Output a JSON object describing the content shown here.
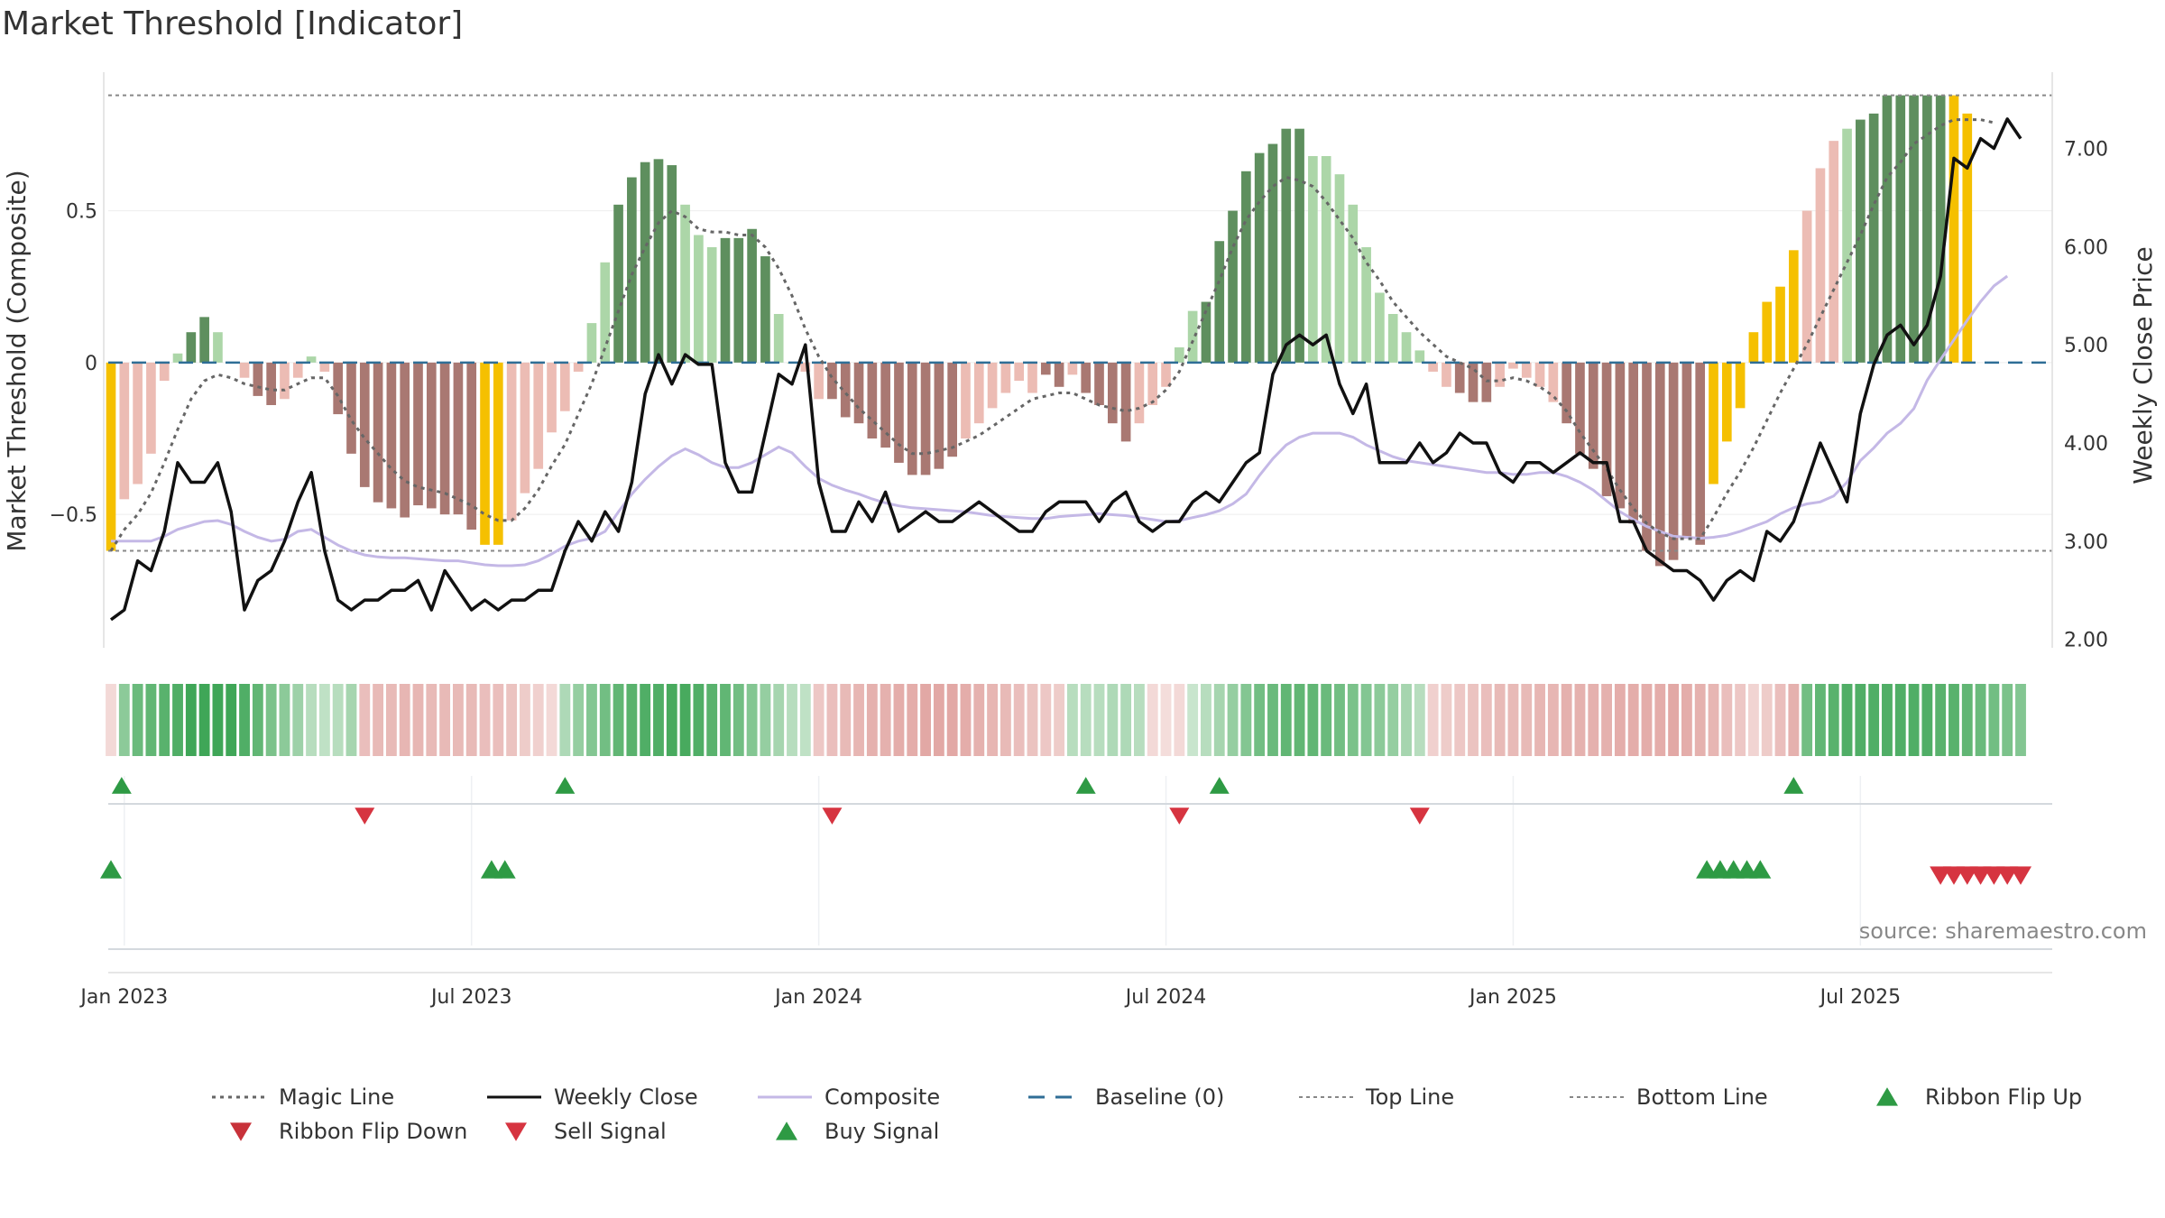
{
  "title": "Market Threshold [Indicator]",
  "source": "source: sharemaestro.com",
  "colors": {
    "strong_up": "#5e8f5e",
    "weak_up": "#acd6a8",
    "strong_down": "#a97872",
    "weak_down": "#ecbcb4",
    "extreme": "#f5c000",
    "weekly_close": "#111111",
    "composite": "#c4b8e6",
    "magic_line": "#666666",
    "baseline": "#2f6e96",
    "threshold": "#888888",
    "buy": "#2e9a44",
    "sell": "#d63440",
    "ribbon_up": "#3fa657",
    "ribbon_down": "#d98e8a"
  },
  "chart_data": {
    "type": "bar",
    "title": "Market Threshold [Indicator]",
    "ylabel_left": "Market Threshold (Composite)",
    "ylabel_right": "Weekly Close Price",
    "left_axis": {
      "ylim": [
        -0.96,
        0.98
      ],
      "ticks": [
        0.5,
        0,
        -0.5
      ],
      "tick_labels": [
        "0.5",
        "0",
        "−0.5"
      ]
    },
    "right_axis": {
      "ylim": [
        1.85,
        7.85
      ],
      "ticks": [
        7,
        6,
        5,
        4,
        3,
        2
      ],
      "tick_labels": [
        "7.00",
        "6.00",
        "5.00",
        "4.00",
        "3.00",
        "2.00"
      ]
    },
    "x_ticks": [
      {
        "label": "Jan 2023",
        "week": 1
      },
      {
        "label": "Jul 2023",
        "week": 27
      },
      {
        "label": "Jan 2024",
        "week": 53
      },
      {
        "label": "Jul 2024",
        "week": 79
      },
      {
        "label": "Jan 2025",
        "week": 105
      },
      {
        "label": "Jul 2025",
        "week": 131
      }
    ],
    "weeks_total": 144,
    "top_line": 0.88,
    "bottom_line": -0.62,
    "bars_composite": [
      -0.62,
      -0.45,
      -0.4,
      -0.3,
      -0.06,
      0.03,
      0.1,
      0.15,
      0.1,
      0,
      -0.05,
      -0.11,
      -0.14,
      -0.12,
      -0.05,
      0.02,
      -0.03,
      -0.17,
      -0.3,
      -0.41,
      -0.46,
      -0.48,
      -0.51,
      -0.47,
      -0.48,
      -0.5,
      -0.5,
      -0.55,
      -0.6,
      -0.6,
      -0.52,
      -0.43,
      -0.35,
      -0.23,
      -0.16,
      -0.03,
      0.13,
      0.33,
      0.52,
      0.61,
      0.66,
      0.67,
      0.65,
      0.52,
      0.42,
      0.38,
      0.41,
      0.41,
      0.44,
      0.35,
      0.16,
      0,
      -0.03,
      -0.12,
      -0.12,
      -0.18,
      -0.2,
      -0.25,
      -0.28,
      -0.33,
      -0.37,
      -0.37,
      -0.35,
      -0.31,
      -0.25,
      -0.2,
      -0.15,
      -0.1,
      -0.06,
      -0.1,
      -0.04,
      -0.08,
      -0.04,
      -0.1,
      -0.14,
      -0.2,
      -0.26,
      -0.2,
      -0.14,
      -0.08,
      0.05,
      0.17,
      0.2,
      0.4,
      0.5,
      0.63,
      0.69,
      0.72,
      0.77,
      0.77,
      0.68,
      0.68,
      0.62,
      0.52,
      0.38,
      0.23,
      0.16,
      0.1,
      0.04,
      -0.03,
      -0.08,
      -0.1,
      -0.13,
      -0.13,
      -0.08,
      -0.02,
      -0.05,
      -0.08,
      -0.13,
      -0.2,
      -0.3,
      -0.35,
      -0.44,
      -0.48,
      -0.53,
      -0.62,
      -0.67,
      -0.65,
      -0.58,
      -0.6,
      -0.4,
      -0.26,
      -0.15,
      0.1,
      0.2,
      0.25,
      0.37,
      0.5,
      0.64,
      0.73,
      0.77,
      0.8,
      0.82,
      0.88,
      0.88,
      0.88,
      0.88,
      0.88,
      0.88,
      0.82
    ],
    "bars_category": [
      "E",
      "WD",
      "WD",
      "WD",
      "WD",
      "WU",
      "SU",
      "SU",
      "WU",
      "WD",
      "WD",
      "SD",
      "SD",
      "WD",
      "WD",
      "WU",
      "WD",
      "SD",
      "SD",
      "SD",
      "SD",
      "SD",
      "SD",
      "SD",
      "SD",
      "SD",
      "SD",
      "SD",
      "E",
      "E",
      "WD",
      "WD",
      "WD",
      "WD",
      "WD",
      "WD",
      "WU",
      "WU",
      "SU",
      "SU",
      "SU",
      "SU",
      "SU",
      "WU",
      "WU",
      "WU",
      "SU",
      "SU",
      "SU",
      "SU",
      "WU",
      "WU",
      "WD",
      "WD",
      "SD",
      "SD",
      "SD",
      "SD",
      "SD",
      "SD",
      "SD",
      "SD",
      "SD",
      "SD",
      "WD",
      "WD",
      "WD",
      "WD",
      "WD",
      "WD",
      "SD",
      "SD",
      "WD",
      "SD",
      "SD",
      "SD",
      "SD",
      "WD",
      "WD",
      "WD",
      "WU",
      "WU",
      "SU",
      "SU",
      "SU",
      "SU",
      "SU",
      "SU",
      "SU",
      "SU",
      "WU",
      "WU",
      "WU",
      "WU",
      "WU",
      "WU",
      "WU",
      "WU",
      "WU",
      "WD",
      "WD",
      "SD",
      "SD",
      "SD",
      "WD",
      "WD",
      "WD",
      "WD",
      "WD",
      "SD",
      "SD",
      "SD",
      "SD",
      "SD",
      "SD",
      "SD",
      "SD",
      "SD",
      "SD",
      "SD",
      "E",
      "E",
      "E",
      "E",
      "E",
      "E",
      "E",
      "WD",
      "WD",
      "WD",
      "WU",
      "SU",
      "SU",
      "SU",
      "SU",
      "SU",
      "SU",
      "SU",
      "E",
      "E",
      "E",
      "E",
      "E",
      "E",
      "E",
      "WU"
    ],
    "series": [
      {
        "name": "Magic Line",
        "axis": "left",
        "values": [
          -0.62,
          -0.55,
          -0.5,
          -0.43,
          -0.33,
          -0.22,
          -0.12,
          -0.06,
          -0.04,
          -0.05,
          -0.07,
          -0.08,
          -0.09,
          -0.09,
          -0.07,
          -0.05,
          -0.05,
          -0.11,
          -0.19,
          -0.25,
          -0.3,
          -0.35,
          -0.39,
          -0.41,
          -0.42,
          -0.43,
          -0.45,
          -0.47,
          -0.5,
          -0.52,
          -0.52,
          -0.48,
          -0.42,
          -0.34,
          -0.27,
          -0.17,
          -0.07,
          0.05,
          0.17,
          0.29,
          0.38,
          0.46,
          0.5,
          0.48,
          0.44,
          0.43,
          0.43,
          0.42,
          0.42,
          0.38,
          0.31,
          0.22,
          0.11,
          0.02,
          -0.05,
          -0.1,
          -0.15,
          -0.19,
          -0.23,
          -0.27,
          -0.3,
          -0.3,
          -0.29,
          -0.28,
          -0.26,
          -0.24,
          -0.21,
          -0.18,
          -0.15,
          -0.12,
          -0.11,
          -0.1,
          -0.1,
          -0.12,
          -0.14,
          -0.15,
          -0.16,
          -0.15,
          -0.13,
          -0.09,
          -0.03,
          0.07,
          0.17,
          0.27,
          0.38,
          0.47,
          0.53,
          0.58,
          0.61,
          0.6,
          0.58,
          0.53,
          0.47,
          0.41,
          0.33,
          0.27,
          0.2,
          0.15,
          0.1,
          0.06,
          0.02,
          0,
          -0.02,
          -0.06,
          -0.06,
          -0.05,
          -0.06,
          -0.08,
          -0.11,
          -0.16,
          -0.23,
          -0.29,
          -0.35,
          -0.42,
          -0.48,
          -0.53,
          -0.56,
          -0.58,
          -0.58,
          -0.58,
          -0.51,
          -0.43,
          -0.36,
          -0.28,
          -0.19,
          -0.1,
          -0.02,
          0.06,
          0.15,
          0.24,
          0.33,
          0.42,
          0.52,
          0.61,
          0.66,
          0.72,
          0.75,
          0.78,
          0.8,
          0.8,
          0.8,
          0.79
        ]
      },
      {
        "name": "Weekly Close",
        "axis": "right",
        "values": [
          2.2,
          2.3,
          2.8,
          2.7,
          3.1,
          3.8,
          3.6,
          3.6,
          3.8,
          3.3,
          2.3,
          2.6,
          2.7,
          3,
          3.4,
          3.7,
          2.9,
          2.4,
          2.3,
          2.4,
          2.4,
          2.5,
          2.5,
          2.6,
          2.3,
          2.7,
          2.5,
          2.3,
          2.4,
          2.3,
          2.4,
          2.4,
          2.5,
          2.5,
          2.9,
          3.2,
          3,
          3.3,
          3.1,
          3.6,
          4.5,
          4.9,
          4.6,
          4.9,
          4.8,
          4.8,
          3.8,
          3.5,
          3.5,
          4.1,
          4.7,
          4.6,
          5,
          3.6,
          3.1,
          3.1,
          3.4,
          3.2,
          3.5,
          3.1,
          3.2,
          3.3,
          3.2,
          3.2,
          3.3,
          3.4,
          3.3,
          3.2,
          3.1,
          3.1,
          3.3,
          3.4,
          3.4,
          3.4,
          3.2,
          3.4,
          3.5,
          3.2,
          3.1,
          3.2,
          3.2,
          3.4,
          3.5,
          3.4,
          3.6,
          3.8,
          3.9,
          4.7,
          5,
          5.1,
          5,
          5.1,
          4.6,
          4.3,
          4.6,
          3.8,
          3.8,
          3.8,
          4,
          3.8,
          3.9,
          4.1,
          4,
          4,
          3.7,
          3.6,
          3.8,
          3.8,
          3.7,
          3.8,
          3.9,
          3.8,
          3.8,
          3.2,
          3.2,
          2.9,
          2.8,
          2.7,
          2.7,
          2.6,
          2.4,
          2.6,
          2.7,
          2.6,
          3.1,
          3,
          3.2,
          3.6,
          4,
          3.7,
          3.4,
          4.3,
          4.8,
          5.1,
          5.2,
          5,
          5.2,
          5.7,
          6.9,
          6.8,
          7.1,
          7,
          7.3,
          7.1
        ]
      },
      {
        "name": "Composite",
        "axis": "right",
        "values": [
          3,
          3,
          3,
          3,
          3.05,
          3.12,
          3.16,
          3.2,
          3.21,
          3.17,
          3.1,
          3.04,
          3.0,
          3.02,
          3.1,
          3.12,
          3.04,
          2.96,
          2.9,
          2.86,
          2.84,
          2.83,
          2.83,
          2.82,
          2.81,
          2.8,
          2.8,
          2.78,
          2.76,
          2.75,
          2.75,
          2.76,
          2.8,
          2.87,
          2.95,
          3.0,
          3.03,
          3.1,
          3.3,
          3.48,
          3.63,
          3.76,
          3.87,
          3.94,
          3.88,
          3.8,
          3.75,
          3.75,
          3.8,
          3.88,
          3.96,
          3.9,
          3.76,
          3.64,
          3.57,
          3.52,
          3.48,
          3.43,
          3.39,
          3.36,
          3.34,
          3.33,
          3.32,
          3.31,
          3.3,
          3.28,
          3.26,
          3.25,
          3.24,
          3.23,
          3.23,
          3.25,
          3.26,
          3.27,
          3.28,
          3.27,
          3.26,
          3.24,
          3.22,
          3.2,
          3.21,
          3.24,
          3.27,
          3.31,
          3.38,
          3.48,
          3.67,
          3.84,
          3.98,
          4.06,
          4.1,
          4.1,
          4.1,
          4.06,
          3.98,
          3.92,
          3.86,
          3.82,
          3.8,
          3.78,
          3.76,
          3.74,
          3.72,
          3.7,
          3.7,
          3.68,
          3.68,
          3.7,
          3.7,
          3.66,
          3.6,
          3.52,
          3.41,
          3.3,
          3.22,
          3.15,
          3.1,
          3.05,
          3.04,
          3.03,
          3.04,
          3.06,
          3.1,
          3.15,
          3.2,
          3.28,
          3.34,
          3.38,
          3.4,
          3.46,
          3.6,
          3.82,
          3.95,
          4.1,
          4.2,
          4.35,
          4.64,
          4.85,
          5.05,
          5.25,
          5.44,
          5.6,
          5.7
        ]
      }
    ],
    "ribbon_levels": [
      0.15,
      0.55,
      0.75,
      0.8,
      0.85,
      0.9,
      1,
      1,
      1,
      1,
      0.9,
      0.8,
      0.65,
      0.55,
      0.45,
      0.3,
      0.25,
      0.3,
      0.4,
      0.45,
      0.5,
      0.5,
      0.55,
      0.55,
      0.5,
      0.5,
      0.5,
      0.5,
      0.45,
      0.45,
      0.4,
      0.3,
      0.25,
      0.15,
      0.35,
      0.5,
      0.6,
      0.7,
      0.8,
      0.85,
      0.9,
      0.9,
      0.95,
      0.95,
      0.9,
      0.85,
      0.8,
      0.7,
      0.6,
      0.5,
      0.4,
      0.3,
      0.25,
      0.35,
      0.45,
      0.5,
      0.55,
      0.6,
      0.6,
      0.65,
      0.65,
      0.7,
      0.7,
      0.7,
      0.65,
      0.6,
      0.55,
      0.5,
      0.45,
      0.4,
      0.35,
      0.3,
      0.3,
      0.3,
      0.3,
      0.35,
      0.35,
      0.3,
      0.15,
      0.1,
      0.15,
      0.2,
      0.3,
      0.4,
      0.5,
      0.6,
      0.7,
      0.75,
      0.8,
      0.8,
      0.8,
      0.75,
      0.7,
      0.65,
      0.6,
      0.55,
      0.5,
      0.4,
      0.3,
      0.25,
      0.3,
      0.35,
      0.4,
      0.45,
      0.5,
      0.5,
      0.5,
      0.55,
      0.55,
      0.6,
      0.6,
      0.6,
      0.6,
      0.65,
      0.65,
      0.65,
      0.65,
      0.7,
      0.65,
      0.6,
      0.55,
      0.45,
      0.35,
      0.2,
      0.3,
      0.45,
      0.6,
      0.7,
      0.8,
      0.85,
      0.9,
      0.9,
      0.9,
      0.9,
      0.9,
      0.9,
      0.9,
      0.85,
      0.85,
      0.8,
      0.75,
      0.7,
      0.65,
      0.6
    ],
    "ribbon_direction": [
      "down",
      "up",
      "up",
      "up",
      "up",
      "up",
      "up",
      "up",
      "up",
      "up",
      "up",
      "up",
      "up",
      "up",
      "up",
      "up",
      "up",
      "up",
      "up",
      "down",
      "down",
      "down",
      "down",
      "down",
      "down",
      "down",
      "down",
      "down",
      "down",
      "down",
      "down",
      "down",
      "down",
      "down",
      "up",
      "up",
      "up",
      "up",
      "up",
      "up",
      "up",
      "up",
      "up",
      "up",
      "up",
      "up",
      "up",
      "up",
      "up",
      "up",
      "up",
      "up",
      "up",
      "down",
      "down",
      "down",
      "down",
      "down",
      "down",
      "down",
      "down",
      "down",
      "down",
      "down",
      "down",
      "down",
      "down",
      "down",
      "down",
      "down",
      "down",
      "down",
      "up",
      "up",
      "up",
      "up",
      "up",
      "up",
      "down",
      "down",
      "down",
      "up",
      "up",
      "up",
      "up",
      "up",
      "up",
      "up",
      "up",
      "up",
      "up",
      "up",
      "up",
      "up",
      "up",
      "up",
      "up",
      "up",
      "up",
      "down",
      "down",
      "down",
      "down",
      "down",
      "down",
      "down",
      "down",
      "down",
      "down",
      "down",
      "down",
      "down",
      "down",
      "down",
      "down",
      "down",
      "down",
      "down",
      "down",
      "down",
      "down",
      "down",
      "down",
      "down",
      "down",
      "down",
      "down",
      "up",
      "up",
      "up",
      "up",
      "up",
      "up",
      "up",
      "up",
      "up",
      "up",
      "up",
      "up",
      "up",
      "up",
      "up",
      "up",
      "up",
      "up",
      "up"
    ],
    "ribbon_flip_up_weeks": [
      0.8,
      34,
      73,
      83,
      126
    ],
    "ribbon_flip_down_weeks": [
      19,
      54,
      80,
      98
    ],
    "buy_signal_weeks": [
      0,
      28.5,
      29.5,
      119.5,
      120.5,
      121.5,
      122.5,
      123.5
    ],
    "sell_signal_weeks": [
      137,
      138,
      139,
      140,
      141,
      142,
      143
    ]
  },
  "legend": [
    {
      "label": "Magic Line",
      "kind": "dotted",
      "color": "#666666"
    },
    {
      "label": "Weekly Close",
      "kind": "solid",
      "color": "#111111"
    },
    {
      "label": "Composite",
      "kind": "solid-light",
      "color": "#c4b8e6"
    },
    {
      "label": "Baseline (0)",
      "kind": "dashed",
      "color": "#2f6e96"
    },
    {
      "label": "Top Line",
      "kind": "dotted-thin",
      "color": "#888888"
    },
    {
      "label": "Bottom Line",
      "kind": "dotted-thin",
      "color": "#888888"
    },
    {
      "label": "Ribbon Flip Up",
      "kind": "tri-up",
      "color": "#2e9a44"
    },
    {
      "label": "Ribbon Flip Down",
      "kind": "tri-down",
      "color": "#c8323a"
    },
    {
      "label": "Sell Signal",
      "kind": "tri-down",
      "color": "#d63440"
    },
    {
      "label": "Buy Signal",
      "kind": "tri-up",
      "color": "#2e9a44"
    }
  ]
}
